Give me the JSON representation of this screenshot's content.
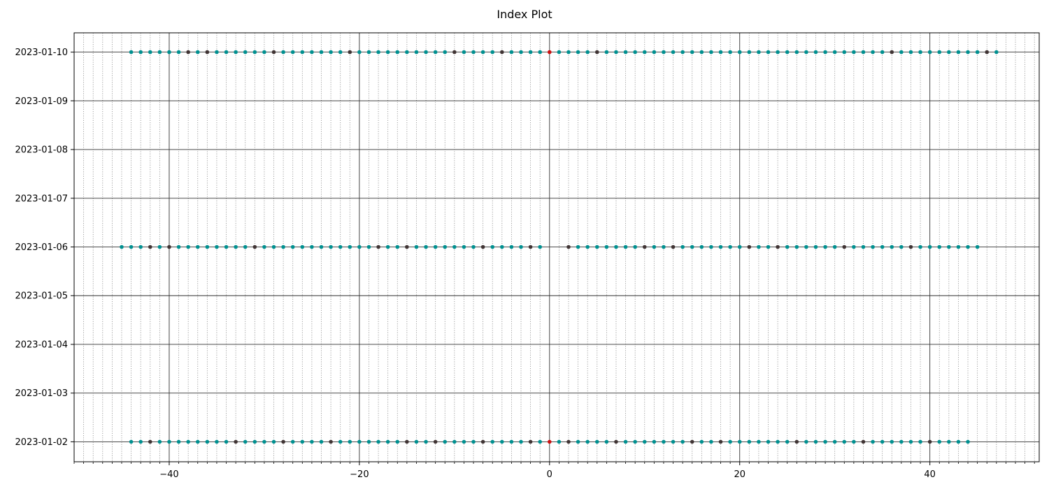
{
  "chart_data": {
    "type": "scatter",
    "title": "Index Plot",
    "xlabel": "",
    "ylabel": "",
    "xlim": [
      -50,
      51.5
    ],
    "ylim": [
      "2023-01-01T14:10",
      "2023-01-10T09:30"
    ],
    "x_ticks": [
      -40,
      -20,
      0,
      20,
      40
    ],
    "x_tick_labels": [
      "−40",
      "−20",
      "0",
      "20",
      "40"
    ],
    "x_minor_step": 1,
    "y_ticks": [
      "2023-01-02",
      "2023-01-03",
      "2023-01-04",
      "2023-01-05",
      "2023-01-06",
      "2023-01-07",
      "2023-01-08",
      "2023-01-09",
      "2023-01-10"
    ],
    "grid": {
      "major": true,
      "minor_x": true
    },
    "colors": {
      "default": "#009090",
      "highlight": "#403434",
      "origin": "#cc1010"
    },
    "series": [
      {
        "y": "2023-01-10",
        "x_min": -44,
        "x_max": 47,
        "highlight_x": [
          -38,
          -36,
          -29,
          -21,
          -10,
          -5,
          5,
          36,
          46
        ],
        "origin_x": [
          0
        ]
      },
      {
        "y": "2023-01-06",
        "x_min": -45,
        "x_max": 45,
        "highlight_x": [
          -42,
          -40,
          -31,
          -18,
          -15,
          -7,
          -2,
          2,
          10,
          13,
          21,
          24,
          31,
          38
        ],
        "origin_x": [],
        "open_x": [
          0,
          1
        ]
      },
      {
        "y": "2023-01-02",
        "x_min": -44,
        "x_max": 44,
        "highlight_x": [
          -42,
          -33,
          -28,
          -23,
          -15,
          -12,
          -7,
          -2,
          2,
          7,
          15,
          18,
          26,
          33,
          40
        ],
        "origin_x": [
          0
        ]
      }
    ]
  }
}
